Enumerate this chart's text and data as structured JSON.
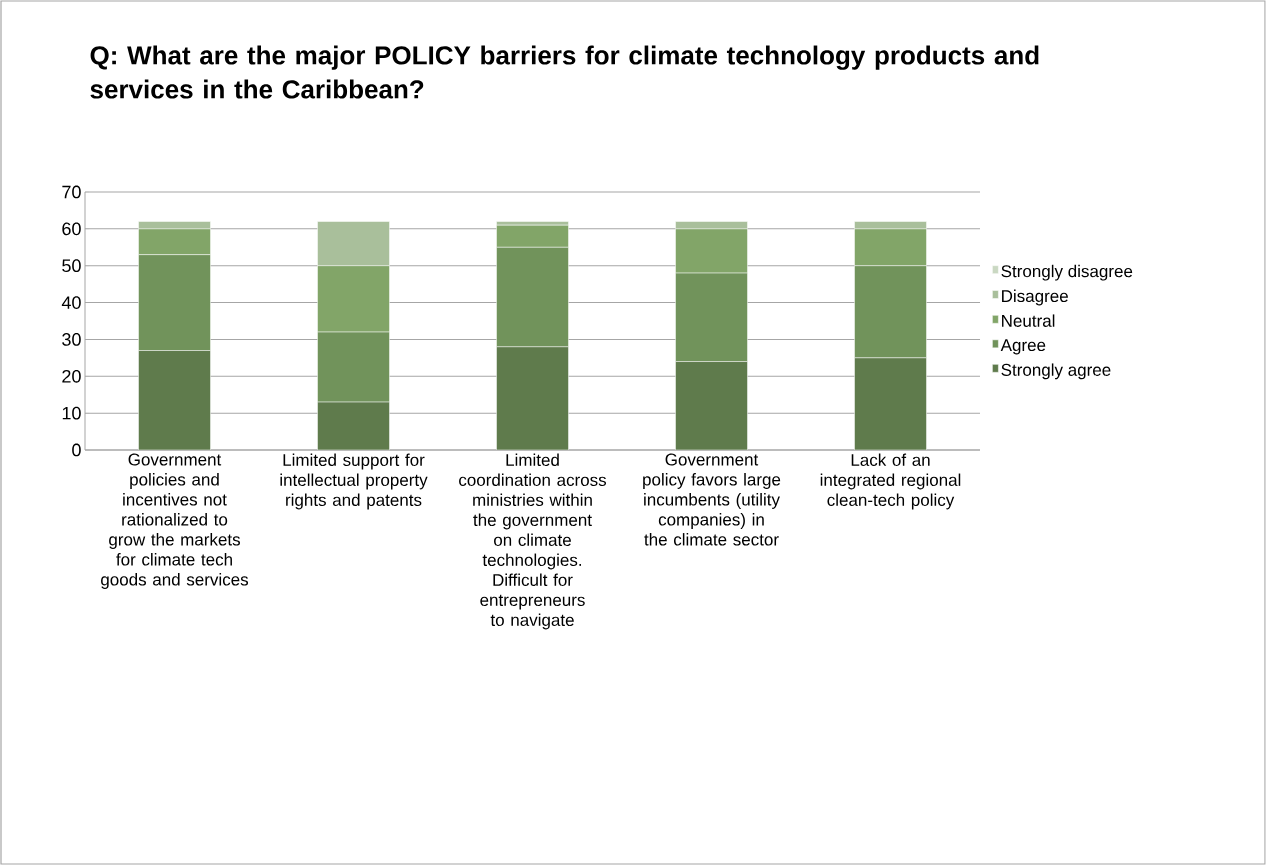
{
  "chart_data": {
    "type": "bar",
    "stacked": true,
    "title": "Q: What are the major POLICY barriers for climate technology products and services in the Caribbean?",
    "categories": [
      "Government policies and incentives not rationalized to grow the markets for climate tech goods and services",
      "Limited support for intellectual property rights and patents",
      "Limited coordination across ministries within the government on climate technologies. Difficult for entrepreneurs to navigate",
      "Government policy favors large incumbents (utility companies) in the climate sector",
      "Lack of an integrated regional clean-tech policy"
    ],
    "series": [
      {
        "name": "Strongly agree",
        "color": "#5f7b4c",
        "values": [
          27,
          13,
          28,
          24,
          25
        ]
      },
      {
        "name": "Agree",
        "color": "#71935b",
        "values": [
          26,
          19,
          27,
          24,
          25
        ]
      },
      {
        "name": "Neutral",
        "color": "#82a568",
        "values": [
          7,
          18,
          6,
          12,
          10
        ]
      },
      {
        "name": "Disagree",
        "color": "#a9bf9b",
        "values": [
          2,
          12,
          1,
          2,
          2
        ]
      },
      {
        "name": "Strongly disagree",
        "color": "#cad8c2",
        "values": [
          0,
          0,
          0,
          0,
          0
        ]
      }
    ],
    "ylim": [
      0,
      70
    ],
    "yticks": [
      0,
      10,
      20,
      30,
      40,
      50,
      60,
      70
    ],
    "grid": "y",
    "legend": "right"
  }
}
